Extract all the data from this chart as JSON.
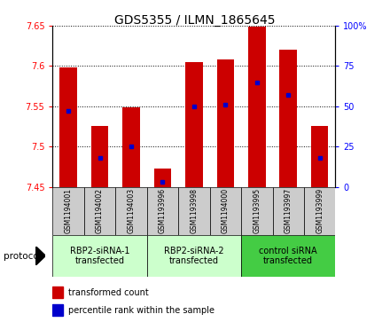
{
  "title": "GDS5355 / ILMN_1865645",
  "samples": [
    "GSM1194001",
    "GSM1194002",
    "GSM1194003",
    "GSM1193996",
    "GSM1193998",
    "GSM1194000",
    "GSM1193995",
    "GSM1193997",
    "GSM1193999"
  ],
  "transformed_counts": [
    7.598,
    7.526,
    7.549,
    7.473,
    7.605,
    7.608,
    7.649,
    7.62,
    7.526
  ],
  "percentile_ranks": [
    47,
    18,
    25,
    3,
    50,
    51,
    65,
    57,
    18
  ],
  "ylim_left": [
    7.45,
    7.65
  ],
  "ylim_right": [
    0,
    100
  ],
  "yticks_left": [
    7.45,
    7.5,
    7.55,
    7.6,
    7.65
  ],
  "yticks_right": [
    0,
    25,
    50,
    75,
    100
  ],
  "bar_color": "#cc0000",
  "dot_color": "#0000cc",
  "bar_bottom": 7.45,
  "groups": [
    {
      "label": "RBP2-siRNA-1\ntransfected",
      "start": 0,
      "end": 3,
      "color": "#ccffcc"
    },
    {
      "label": "RBP2-siRNA-2\ntransfected",
      "start": 3,
      "end": 6,
      "color": "#ccffcc"
    },
    {
      "label": "control siRNA\ntransfected",
      "start": 6,
      "end": 9,
      "color": "#44cc44"
    }
  ],
  "title_fontsize": 10,
  "tick_fontsize": 7,
  "sample_fontsize": 5.5,
  "group_fontsize": 7,
  "legend_fontsize": 7,
  "protocol_fontsize": 7.5
}
